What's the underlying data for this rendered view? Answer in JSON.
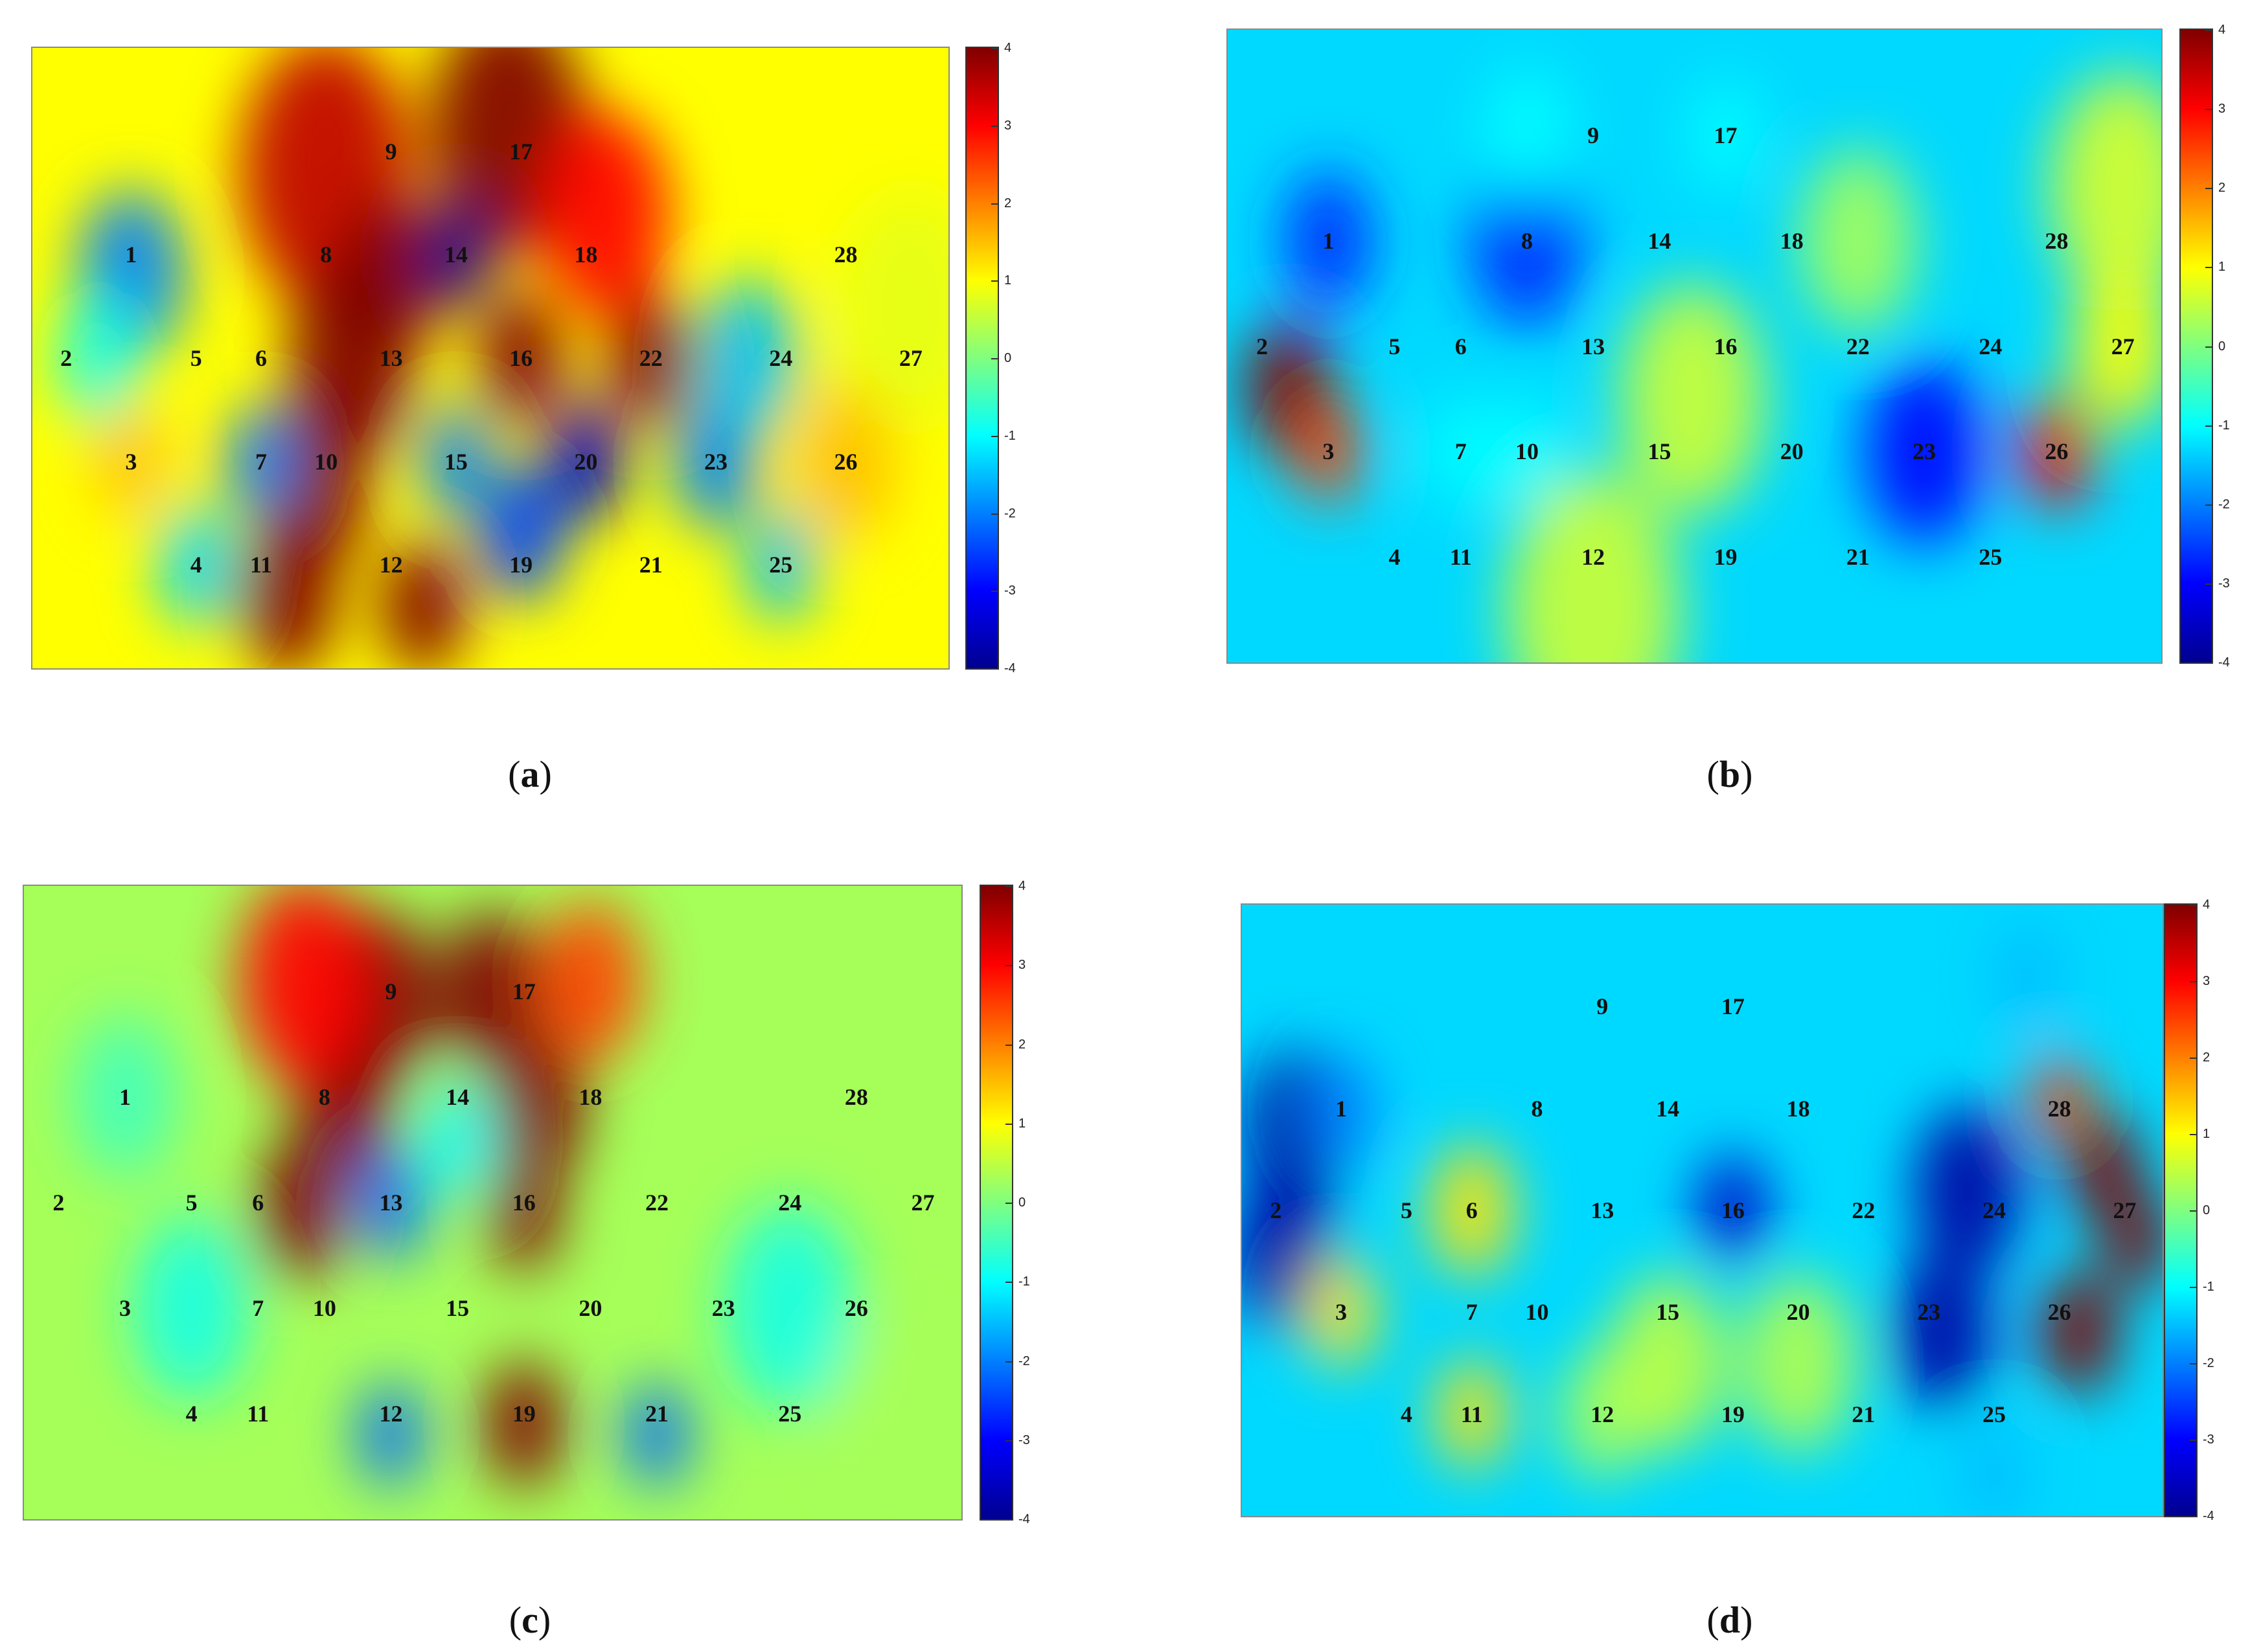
{
  "chart_data": [
    {
      "type": "heatmap",
      "caption_letter": "a",
      "colorbar": {
        "min": -4,
        "max": 4,
        "ticks": [
          "4",
          "3",
          "2",
          "1",
          "0",
          "-1",
          "-2",
          "-3",
          "-4"
        ]
      },
      "background_level": 1.0,
      "sensors": [
        {
          "label": "1",
          "c": 1,
          "r": 1
        },
        {
          "label": "2",
          "c": 0,
          "r": 2
        },
        {
          "label": "3",
          "c": 1,
          "r": 3
        },
        {
          "label": "4",
          "c": 2,
          "r": 4
        },
        {
          "label": "5",
          "c": 2,
          "r": 2
        },
        {
          "label": "6",
          "c": 3,
          "r": 2
        },
        {
          "label": "7",
          "c": 3,
          "r": 3
        },
        {
          "label": "8",
          "c": 4,
          "r": 1
        },
        {
          "label": "9",
          "c": 5,
          "r": 0
        },
        {
          "label": "10",
          "c": 4,
          "r": 3
        },
        {
          "label": "11",
          "c": 3,
          "r": 4
        },
        {
          "label": "12",
          "c": 5,
          "r": 4
        },
        {
          "label": "13",
          "c": 5,
          "r": 2
        },
        {
          "label": "14",
          "c": 6,
          "r": 1
        },
        {
          "label": "15",
          "c": 6,
          "r": 3
        },
        {
          "label": "16",
          "c": 7,
          "r": 2
        },
        {
          "label": "17",
          "c": 7,
          "r": 0
        },
        {
          "label": "18",
          "c": 8,
          "r": 1
        },
        {
          "label": "19",
          "c": 7,
          "r": 4
        },
        {
          "label": "20",
          "c": 8,
          "r": 3
        },
        {
          "label": "21",
          "c": 9,
          "r": 4
        },
        {
          "label": "22",
          "c": 9,
          "r": 2
        },
        {
          "label": "23",
          "c": 10,
          "r": 3
        },
        {
          "label": "24",
          "c": 11,
          "r": 2
        },
        {
          "label": "25",
          "c": 11,
          "r": 4
        },
        {
          "label": "26",
          "c": 12,
          "r": 3
        },
        {
          "label": "27",
          "c": 13,
          "r": 2
        },
        {
          "label": "28",
          "c": 12,
          "r": 1
        }
      ],
      "field": [
        {
          "c": 4,
          "r": 0.2,
          "v": 3.5,
          "s": 1.2
        },
        {
          "c": 6.8,
          "r": -0.2,
          "v": 5,
          "s": 1.1
        },
        {
          "c": 4.4,
          "r": 2,
          "v": 5,
          "s": 0.9
        },
        {
          "c": 3.8,
          "r": 3.2,
          "v": 5,
          "s": 0.8
        },
        {
          "c": 3.4,
          "r": 4.3,
          "v": 5,
          "s": 0.7
        },
        {
          "c": 5.5,
          "r": 4.4,
          "v": 4,
          "s": 0.6
        },
        {
          "c": 5,
          "r": 1.2,
          "v": 4,
          "s": 0.7
        },
        {
          "c": 7,
          "r": 2,
          "v": 4,
          "s": 0.6
        },
        {
          "c": 9,
          "r": 2,
          "v": 4,
          "s": 0.6
        },
        {
          "c": 8.3,
          "r": 0.6,
          "v": 3,
          "s": 0.9
        },
        {
          "c": 6,
          "r": 1,
          "v": -4.5,
          "s": 0.5
        },
        {
          "c": 8,
          "r": 3,
          "v": -3.5,
          "s": 0.55
        },
        {
          "c": 7,
          "r": 3.7,
          "v": -2.5,
          "s": 0.6
        },
        {
          "c": 6,
          "r": 3,
          "v": -2,
          "s": 0.5
        },
        {
          "c": 1,
          "r": 1.2,
          "v": -2,
          "s": 0.75
        },
        {
          "c": 2,
          "r": 4,
          "v": -1.3,
          "s": 0.55
        },
        {
          "c": 3,
          "r": 3,
          "v": -2,
          "s": 0.5
        },
        {
          "c": 10,
          "r": 3,
          "v": -2,
          "s": 0.6
        },
        {
          "c": 10.5,
          "r": 2,
          "v": -1.5,
          "s": 0.7
        },
        {
          "c": 11,
          "r": 4,
          "v": -1.5,
          "s": 0.5
        },
        {
          "c": 0.5,
          "r": 2,
          "v": -0.8,
          "s": 0.6
        },
        {
          "c": 1,
          "r": 3,
          "v": 1.5,
          "s": 0.5
        },
        {
          "c": 12,
          "r": 3,
          "v": 1.5,
          "s": 0.7
        },
        {
          "c": 13,
          "r": 1.5,
          "v": 0.8,
          "s": 1
        }
      ]
    },
    {
      "type": "heatmap",
      "caption_letter": "b",
      "colorbar": {
        "min": -4,
        "max": 4,
        "ticks": [
          "4",
          "3",
          "2",
          "1",
          "0",
          "-1",
          "-2",
          "-3",
          "-4"
        ]
      },
      "background_level": -1.3,
      "sensors": [
        {
          "label": "1",
          "c": 1,
          "r": 1
        },
        {
          "label": "2",
          "c": 0,
          "r": 2
        },
        {
          "label": "3",
          "c": 1,
          "r": 3
        },
        {
          "label": "4",
          "c": 2,
          "r": 4
        },
        {
          "label": "5",
          "c": 2,
          "r": 2
        },
        {
          "label": "6",
          "c": 3,
          "r": 2
        },
        {
          "label": "7",
          "c": 3,
          "r": 3
        },
        {
          "label": "8",
          "c": 4,
          "r": 1
        },
        {
          "label": "9",
          "c": 5,
          "r": 0
        },
        {
          "label": "10",
          "c": 4,
          "r": 3
        },
        {
          "label": "11",
          "c": 3,
          "r": 4
        },
        {
          "label": "12",
          "c": 5,
          "r": 4
        },
        {
          "label": "13",
          "c": 5,
          "r": 2
        },
        {
          "label": "14",
          "c": 6,
          "r": 1
        },
        {
          "label": "15",
          "c": 6,
          "r": 3
        },
        {
          "label": "16",
          "c": 7,
          "r": 2
        },
        {
          "label": "17",
          "c": 7,
          "r": 0
        },
        {
          "label": "18",
          "c": 8,
          "r": 1
        },
        {
          "label": "19",
          "c": 7,
          "r": 4
        },
        {
          "label": "20",
          "c": 8,
          "r": 3
        },
        {
          "label": "21",
          "c": 9,
          "r": 4
        },
        {
          "label": "22",
          "c": 9,
          "r": 2
        },
        {
          "label": "23",
          "c": 10,
          "r": 3
        },
        {
          "label": "24",
          "c": 11,
          "r": 2
        },
        {
          "label": "25",
          "c": 11,
          "r": 4
        },
        {
          "label": "26",
          "c": 12,
          "r": 3
        },
        {
          "label": "27",
          "c": 13,
          "r": 2
        },
        {
          "label": "28",
          "c": 12,
          "r": 1
        }
      ],
      "field": [
        {
          "c": 0.4,
          "r": 2.4,
          "v": 4.5,
          "s": 0.6
        },
        {
          "c": 1,
          "r": 3,
          "v": 2.5,
          "s": 0.45
        },
        {
          "c": 12,
          "r": 3,
          "v": 3,
          "s": 0.5
        },
        {
          "c": 1,
          "r": 1,
          "v": -2.7,
          "s": 0.6
        },
        {
          "c": 4,
          "r": 1,
          "v": -2.7,
          "s": 0.75
        },
        {
          "c": 4,
          "r": 0,
          "v": -1,
          "s": 0.6
        },
        {
          "c": 10,
          "r": 3,
          "v": -3,
          "s": 0.8
        },
        {
          "c": 3,
          "r": 3,
          "v": -1,
          "s": 0.5
        },
        {
          "c": 4,
          "r": 3,
          "v": -1,
          "s": 0.5
        },
        {
          "c": 7,
          "r": 0,
          "v": -1,
          "s": 0.5
        },
        {
          "c": 6.5,
          "r": 2.5,
          "v": 0.6,
          "s": 1
        },
        {
          "c": 5,
          "r": 4.5,
          "v": 0.6,
          "s": 1.2
        },
        {
          "c": 13,
          "r": 0.5,
          "v": 0.7,
          "s": 1
        },
        {
          "c": 13,
          "r": 2,
          "v": 1,
          "s": 0.7
        },
        {
          "c": 9,
          "r": 1,
          "v": 0.3,
          "s": 0.8
        }
      ]
    },
    {
      "type": "heatmap",
      "caption_letter": "c",
      "colorbar": {
        "min": -4,
        "max": 4,
        "ticks": [
          "4",
          "3",
          "2",
          "1",
          "0",
          "-1",
          "-2",
          "-3",
          "-4"
        ]
      },
      "background_level": 0.3,
      "sensors": [
        {
          "label": "1",
          "c": 1,
          "r": 1
        },
        {
          "label": "2",
          "c": 0,
          "r": 2
        },
        {
          "label": "3",
          "c": 1,
          "r": 3
        },
        {
          "label": "4",
          "c": 2,
          "r": 4
        },
        {
          "label": "5",
          "c": 2,
          "r": 2
        },
        {
          "label": "6",
          "c": 3,
          "r": 2
        },
        {
          "label": "7",
          "c": 3,
          "r": 3
        },
        {
          "label": "8",
          "c": 4,
          "r": 1
        },
        {
          "label": "9",
          "c": 5,
          "r": 0
        },
        {
          "label": "10",
          "c": 4,
          "r": 3
        },
        {
          "label": "11",
          "c": 3,
          "r": 4
        },
        {
          "label": "12",
          "c": 5,
          "r": 4
        },
        {
          "label": "13",
          "c": 5,
          "r": 2
        },
        {
          "label": "14",
          "c": 6,
          "r": 1
        },
        {
          "label": "15",
          "c": 6,
          "r": 3
        },
        {
          "label": "16",
          "c": 7,
          "r": 2
        },
        {
          "label": "17",
          "c": 7,
          "r": 0
        },
        {
          "label": "18",
          "c": 8,
          "r": 1
        },
        {
          "label": "19",
          "c": 7,
          "r": 4
        },
        {
          "label": "20",
          "c": 8,
          "r": 3
        },
        {
          "label": "21",
          "c": 9,
          "r": 4
        },
        {
          "label": "22",
          "c": 9,
          "r": 2
        },
        {
          "label": "23",
          "c": 10,
          "r": 3
        },
        {
          "label": "24",
          "c": 11,
          "r": 2
        },
        {
          "label": "25",
          "c": 11,
          "r": 4
        },
        {
          "label": "26",
          "c": 12,
          "r": 3
        },
        {
          "label": "27",
          "c": 13,
          "r": 2
        },
        {
          "label": "28",
          "c": 12,
          "r": 1
        }
      ],
      "field": [
        {
          "c": 4.8,
          "r": 0.1,
          "v": 5,
          "s": 0.8
        },
        {
          "c": 4.3,
          "r": 1.1,
          "v": 5,
          "s": 0.7
        },
        {
          "c": 3.6,
          "r": 2.1,
          "v": 5,
          "s": 0.6
        },
        {
          "c": 6.5,
          "r": 0,
          "v": 5,
          "s": 0.7
        },
        {
          "c": 7.2,
          "r": 1.1,
          "v": 5,
          "s": 0.65
        },
        {
          "c": 7,
          "r": 2.1,
          "v": 4,
          "s": 0.5
        },
        {
          "c": 7,
          "r": 4.1,
          "v": 5.5,
          "s": 0.55
        },
        {
          "c": 3.7,
          "r": -0.1,
          "v": 3,
          "s": 0.9
        },
        {
          "c": 8,
          "r": -0.1,
          "v": 2.5,
          "s": 0.7
        },
        {
          "c": 5,
          "r": 2,
          "v": -2.2,
          "s": 0.5
        },
        {
          "c": 5,
          "r": 4.2,
          "v": -2.2,
          "s": 0.45
        },
        {
          "c": 9,
          "r": 4.2,
          "v": -2.2,
          "s": 0.45
        },
        {
          "c": 6,
          "r": 1.4,
          "v": -1,
          "s": 0.5
        },
        {
          "c": 2,
          "r": 3,
          "v": -0.8,
          "s": 0.8
        },
        {
          "c": 11,
          "r": 3,
          "v": -0.8,
          "s": 0.9
        },
        {
          "c": 1,
          "r": 1,
          "v": -0.5,
          "s": 0.7
        },
        {
          "c": 12.5,
          "r": 4,
          "v": 0.3,
          "s": 0.8
        }
      ]
    },
    {
      "type": "heatmap",
      "caption_letter": "d",
      "colorbar": {
        "min": -4,
        "max": 4,
        "ticks": [
          "4",
          "3",
          "2",
          "1",
          "0",
          "-1",
          "-2",
          "-3",
          "-4"
        ]
      },
      "background_level": -1.3,
      "sensors": [
        {
          "label": "1",
          "c": 1,
          "r": 1
        },
        {
          "label": "2",
          "c": 0,
          "r": 2
        },
        {
          "label": "3",
          "c": 1,
          "r": 3
        },
        {
          "label": "4",
          "c": 2,
          "r": 4
        },
        {
          "label": "5",
          "c": 2,
          "r": 2
        },
        {
          "label": "6",
          "c": 3,
          "r": 2
        },
        {
          "label": "7",
          "c": 3,
          "r": 3
        },
        {
          "label": "8",
          "c": 4,
          "r": 1
        },
        {
          "label": "9",
          "c": 5,
          "r": 0
        },
        {
          "label": "10",
          "c": 4,
          "r": 3
        },
        {
          "label": "11",
          "c": 3,
          "r": 4
        },
        {
          "label": "12",
          "c": 5,
          "r": 4
        },
        {
          "label": "13",
          "c": 5,
          "r": 2
        },
        {
          "label": "14",
          "c": 6,
          "r": 1
        },
        {
          "label": "15",
          "c": 6,
          "r": 3
        },
        {
          "label": "16",
          "c": 7,
          "r": 2
        },
        {
          "label": "17",
          "c": 7,
          "r": 0
        },
        {
          "label": "18",
          "c": 8,
          "r": 1
        },
        {
          "label": "19",
          "c": 7,
          "r": 4
        },
        {
          "label": "20",
          "c": 8,
          "r": 3
        },
        {
          "label": "21",
          "c": 9,
          "r": 4
        },
        {
          "label": "22",
          "c": 9,
          "r": 2
        },
        {
          "label": "23",
          "c": 10,
          "r": 3
        },
        {
          "label": "24",
          "c": 11,
          "r": 2
        },
        {
          "label": "25",
          "c": 11,
          "r": 4
        },
        {
          "label": "26",
          "c": 12,
          "r": 3
        },
        {
          "label": "27",
          "c": 13,
          "r": 2
        },
        {
          "label": "28",
          "c": 12,
          "r": 1
        }
      ],
      "field": [
        {
          "c": 0.3,
          "r": 1.2,
          "v": -3.8,
          "s": 0.7
        },
        {
          "c": 0.1,
          "r": 2.4,
          "v": -3.8,
          "s": 0.7
        },
        {
          "c": 1,
          "r": 1,
          "v": -2,
          "s": 0.5
        },
        {
          "c": 10.6,
          "r": 1.8,
          "v": -3.8,
          "s": 0.75
        },
        {
          "c": 10.2,
          "r": 3.2,
          "v": -3.8,
          "s": 0.7
        },
        {
          "c": 7,
          "r": 2,
          "v": -3.5,
          "s": 0.5
        },
        {
          "c": 12.7,
          "r": 1.6,
          "v": 4,
          "s": 0.5
        },
        {
          "c": 13.2,
          "r": 2.3,
          "v": 4.5,
          "s": 0.45
        },
        {
          "c": 12.3,
          "r": 3.2,
          "v": 4.5,
          "s": 0.55
        },
        {
          "c": 12,
          "r": 0.9,
          "v": 2.5,
          "s": 0.4
        },
        {
          "c": 11.5,
          "r": -0.3,
          "v": -1.5,
          "s": 0.5
        },
        {
          "c": 11,
          "r": 4.6,
          "v": -1.5,
          "s": 0.5
        },
        {
          "c": 3,
          "r": 2,
          "v": 1.2,
          "s": 0.6
        },
        {
          "c": 1,
          "r": 3,
          "v": 1.2,
          "s": 0.5
        },
        {
          "c": 3,
          "r": 4,
          "v": 1.2,
          "s": 0.5
        },
        {
          "c": 5,
          "r": 4,
          "v": 0.3,
          "s": 0.6
        },
        {
          "c": 6,
          "r": 3.5,
          "v": 0.5,
          "s": 0.8
        },
        {
          "c": 8,
          "r": 3.5,
          "v": 0.4,
          "s": 0.8
        }
      ]
    }
  ]
}
